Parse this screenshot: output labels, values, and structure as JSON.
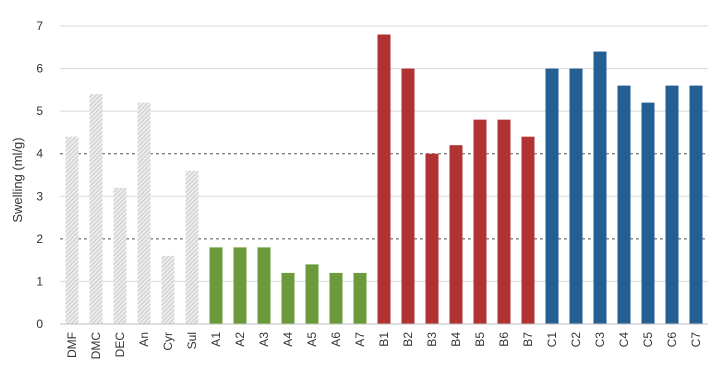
{
  "chart_data": {
    "type": "bar",
    "ylabel": "Swelling (ml/g)",
    "xlabel": "",
    "ylim": [
      0,
      7
    ],
    "yticks": [
      0,
      1,
      2,
      3,
      4,
      5,
      6,
      7
    ],
    "grid": "horizontal at every unit; dashed reference lines at 2 and 4",
    "categories": [
      "DMF",
      "DMC",
      "DEC",
      "An",
      "Cyr",
      "Sul",
      "A1",
      "A2",
      "A3",
      "A4",
      "A5",
      "A6",
      "A7",
      "B1",
      "B2",
      "B3",
      "B4",
      "B5",
      "B6",
      "B7",
      "C1",
      "C2",
      "C3",
      "C4",
      "C5",
      "C6",
      "C7"
    ],
    "values": [
      4.4,
      5.4,
      3.2,
      5.2,
      1.6,
      3.6,
      1.8,
      1.8,
      1.8,
      1.2,
      1.4,
      1.2,
      1.2,
      6.8,
      6.0,
      4.0,
      4.2,
      4.8,
      4.8,
      4.4,
      6.0,
      6.0,
      6.4,
      5.6,
      5.2,
      5.6,
      5.6
    ],
    "groups": [
      {
        "members": [
          "DMF",
          "DMC",
          "DEC",
          "An",
          "Cyr",
          "Sul"
        ],
        "color": "#d2d2d2",
        "pattern": "hatched"
      },
      {
        "members": [
          "A1",
          "A2",
          "A3",
          "A4",
          "A5",
          "A6",
          "A7"
        ],
        "color": "#6a9a3a",
        "pattern": "solid"
      },
      {
        "members": [
          "B1",
          "B2",
          "B3",
          "B4",
          "B5",
          "B6",
          "B7"
        ],
        "color": "#b03232",
        "pattern": "solid"
      },
      {
        "members": [
          "C1",
          "C2",
          "C3",
          "C4",
          "C5",
          "C6",
          "C7"
        ],
        "color": "#245f94",
        "pattern": "solid"
      }
    ],
    "dashed_lines": [
      2,
      4
    ],
    "colors": {
      "grid": "#d9d9d9",
      "dashed": "#555555",
      "axis": "#bfbfbf"
    }
  }
}
